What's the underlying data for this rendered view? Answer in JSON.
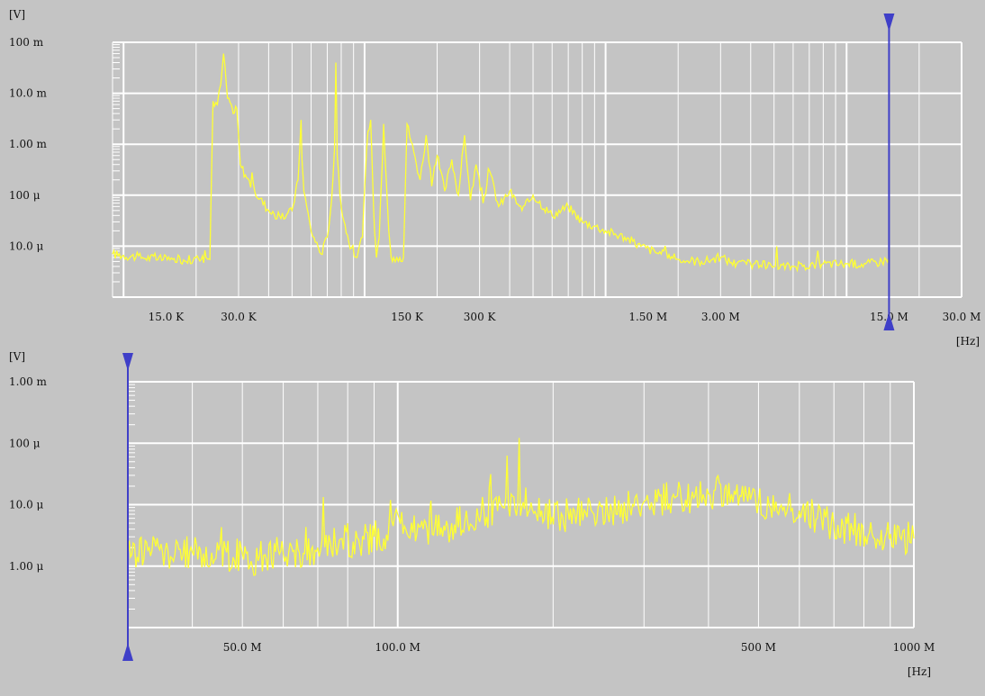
{
  "colors": {
    "background": "#c4c4c4",
    "grid": "#ffffff",
    "trace": "#ffff33",
    "marker": "#3f3fc8"
  },
  "chart_data": [
    {
      "type": "line",
      "x_scale": "log",
      "y_scale": "log",
      "grid": true,
      "y_unit": "[V]",
      "x_unit": "[Hz]",
      "xlim": [
        9000,
        30000000
      ],
      "ylim": [
        1e-06,
        0.1
      ],
      "y_ticks": [
        {
          "value": 0.1,
          "label": "100 m"
        },
        {
          "value": 0.01,
          "label": "10.0 m"
        },
        {
          "value": 0.001,
          "label": "1.00 m"
        },
        {
          "value": 0.0001,
          "label": "100 μ"
        },
        {
          "value": 1e-05,
          "label": "10.0 μ"
        }
      ],
      "x_ticks": [
        {
          "value": 15000,
          "label": "15.0 K"
        },
        {
          "value": 30000,
          "label": "30.0 K"
        },
        {
          "value": 150000,
          "label": "150 K"
        },
        {
          "value": 300000,
          "label": "300 K"
        },
        {
          "value": 1500000,
          "label": "1.50 M"
        },
        {
          "value": 3000000,
          "label": "3.00 M"
        },
        {
          "value": 15000000,
          "label": "15.0 M"
        },
        {
          "value": 30000000,
          "label": "30.0 M"
        }
      ],
      "marker_x": 15000000,
      "series": [
        {
          "x": [
            9000,
            12000,
            16000,
            21000,
            22000,
            22800,
            23500,
            24500,
            25300,
            26000,
            27000,
            28000,
            28500,
            29500,
            30500,
            32000,
            35000,
            40000,
            45000,
            50000,
            53000,
            54500,
            55000,
            56000,
            60000,
            66000,
            70000,
            73000,
            75000,
            76000,
            77000,
            80000,
            86000,
            93000,
            98000,
            102000,
            106000,
            108000,
            110000,
            112000,
            115000,
            118000,
            120000,
            123000,
            126000,
            129000,
            132000,
            136000,
            140000,
            145000,
            150000,
            160000,
            170000,
            180000,
            190000,
            200000,
            215000,
            230000,
            245000,
            260000,
            275000,
            290000,
            310000,
            330000,
            360000,
            400000,
            450000,
            500000,
            600000,
            700000,
            800000,
            900000,
            1000000,
            1200000,
            1400000,
            1700000,
            2000000,
            2500000,
            3000000,
            3500000,
            4000000,
            5000000,
            6000000,
            8000000,
            10000000,
            12000000,
            14000000,
            15000000
          ],
          "values": [
            7e-06,
            6e-06,
            5.5e-06,
            5.5e-06,
            6e-06,
            5.5e-06,
            0.007,
            0.006,
            0.015,
            0.06,
            0.008,
            0.006,
            0.004,
            0.005,
            0.0004,
            0.00025,
            0.00012,
            5e-05,
            3.5e-05,
            5e-05,
            0.0002,
            0.003,
            0.0005,
            0.00012,
            2e-05,
            7e-06,
            1.5e-05,
            8e-05,
            0.0008,
            0.04,
            0.0006,
            6e-05,
            1.2e-05,
            6e-06,
            1.5e-05,
            0.0008,
            0.003,
            0.0002,
            2e-05,
            6e-06,
            1.5e-05,
            0.0003,
            0.0025,
            0.0002,
            2e-05,
            6e-06,
            6e-06,
            6e-06,
            6e-06,
            6e-06,
            0.0025,
            0.0007,
            0.0002,
            0.0015,
            0.00015,
            0.0006,
            0.00012,
            0.0005,
            0.0001,
            0.0015,
            8e-05,
            0.0004,
            7e-05,
            0.0003,
            6e-05,
            0.00012,
            5e-05,
            0.0001,
            4e-05,
            6e-05,
            3e-05,
            2.5e-05,
            2e-05,
            1.5e-05,
            1e-05,
            7e-06,
            5.5e-06,
            5e-06,
            6e-06,
            4.5e-06,
            4.5e-06,
            4e-06,
            4e-06,
            4.5e-06,
            4.5e-06,
            4.5e-06,
            5e-06,
            6e-06
          ]
        }
      ]
    },
    {
      "type": "line",
      "x_scale": "log",
      "y_scale": "log",
      "grid": true,
      "y_unit": "[V]",
      "x_unit": "[Hz]",
      "xlim": [
        30000000,
        1000000000
      ],
      "ylim": [
        1e-07,
        0.001
      ],
      "y_ticks": [
        {
          "value": 0.001,
          "label": "1.00 m"
        },
        {
          "value": 0.0001,
          "label": "100 μ"
        },
        {
          "value": 1e-05,
          "label": "10.0 μ"
        },
        {
          "value": 1e-06,
          "label": "1.00 μ"
        }
      ],
      "x_ticks": [
        {
          "value": 50000000,
          "label": "50.0 M"
        },
        {
          "value": 100000000,
          "label": "100.0 M"
        },
        {
          "value": 500000000,
          "label": "500 M"
        },
        {
          "value": 1000000000,
          "label": "1000 M"
        }
      ],
      "marker_x": 30000000,
      "series": [
        {
          "x": [
            30000000,
            33000000,
            35000000,
            37000000,
            40000000,
            42000000,
            45000000,
            48000000,
            50000000,
            52000000,
            55000000,
            58000000,
            60000000,
            63000000,
            66000000,
            70000000,
            74000000,
            78000000,
            82000000,
            86000000,
            90000000,
            94000000,
            98000000,
            100000000,
            103000000,
            107000000,
            112000000,
            118000000,
            125000000,
            135000000,
            145000000,
            160000000,
            175000000,
            190000000,
            205000000,
            220000000,
            240000000,
            260000000,
            285000000,
            310000000,
            340000000,
            370000000,
            400000000,
            430000000,
            460000000,
            500000000,
            550000000,
            600000000,
            650000000,
            700000000,
            760000000,
            820000000,
            880000000,
            940000000,
            1000000000
          ],
          "values": [
            1.5e-06,
            2e-06,
            1.7e-06,
            1.5e-06,
            1.7e-06,
            1.6e-06,
            1.8e-06,
            1.4e-06,
            1.6e-06,
            1.2e-06,
            1.5e-06,
            1.7e-06,
            1.6e-06,
            1.8e-06,
            1.6e-06,
            2e-06,
            2.5e-06,
            2.8e-06,
            2.5e-06,
            2.7e-06,
            3e-06,
            2.8e-06,
            4.5e-06,
            7e-06,
            4.5e-06,
            3.5e-06,
            4e-06,
            4.5e-06,
            4.5e-06,
            5.5e-06,
            7e-06,
            9e-06,
            1.1e-05,
            8e-06,
            6e-06,
            8e-06,
            7e-06,
            8e-06,
            1e-05,
            1.1e-05,
            1.3e-05,
            1.2e-05,
            1.5e-05,
            1.8e-05,
            1.4e-05,
            1.1e-05,
            9e-06,
            8e-06,
            6e-06,
            4.5e-06,
            4e-06,
            3.5e-06,
            3e-06,
            3e-06,
            2.8e-06
          ]
        }
      ]
    }
  ]
}
